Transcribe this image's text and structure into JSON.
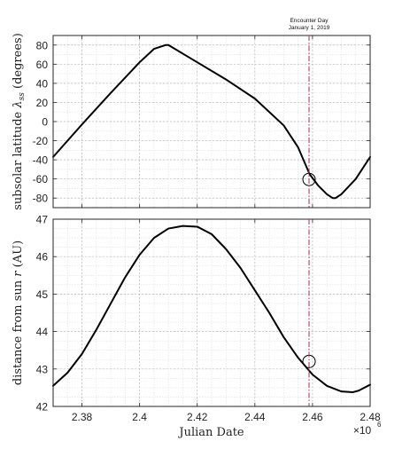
{
  "chart_data": [
    {
      "type": "line",
      "ylabel": "subsolar latitude λ_ss (degrees)",
      "ylabel_text": "subsolar latitude",
      "ylabel_symbol": "λ",
      "ylabel_sub": "ss",
      "ylabel_unit": "(degrees)",
      "xlim": [
        2.37,
        2.48
      ],
      "ylim": [
        -90,
        90
      ],
      "yticks": [
        80,
        60,
        40,
        20,
        0,
        -20,
        -40,
        -60,
        -80
      ],
      "grid": true,
      "series": [
        {
          "color": "#000000",
          "x": [
            2.37,
            2.38,
            2.39,
            2.4,
            2.405,
            2.409,
            2.41,
            2.42,
            2.43,
            2.44,
            2.45,
            2.455,
            2.459,
            2.462,
            2.465,
            2.467,
            2.468,
            2.47,
            2.475,
            2.48
          ],
          "y": [
            -37,
            -3,
            30,
            62,
            76,
            80,
            80,
            62,
            44,
            24,
            -4,
            -27,
            -55,
            -67,
            -76,
            -80,
            -80,
            -76,
            -60,
            -37
          ]
        }
      ],
      "markers": [
        {
          "shape": "circle",
          "x": 2.4588,
          "y": -60.5
        }
      ]
    },
    {
      "type": "line",
      "ylabel": "distance from sun r (AU)",
      "ylabel_text": "distance from sun",
      "ylabel_symbol": "r",
      "ylabel_unit": "(AU)",
      "xlabel": "Julian Date",
      "xlim": [
        2.37,
        2.48
      ],
      "ylim": [
        42,
        47
      ],
      "yticks": [
        47,
        46,
        45,
        44,
        43,
        42
      ],
      "xticks": [
        "2.38",
        "2.4",
        "2.42",
        "2.44",
        "2.46",
        "2.48"
      ],
      "x_multiplier_base": "×10",
      "x_multiplier_exp": "6",
      "grid": true,
      "series": [
        {
          "color": "#000000",
          "x": [
            2.37,
            2.375,
            2.38,
            2.385,
            2.39,
            2.395,
            2.4,
            2.405,
            2.41,
            2.415,
            2.42,
            2.425,
            2.43,
            2.435,
            2.44,
            2.445,
            2.45,
            2.455,
            2.46,
            2.465,
            2.47,
            2.474,
            2.476,
            2.48
          ],
          "y": [
            42.55,
            42.9,
            43.4,
            44.05,
            44.75,
            45.45,
            46.05,
            46.5,
            46.75,
            46.82,
            46.8,
            46.6,
            46.2,
            45.7,
            45.1,
            44.5,
            43.85,
            43.3,
            42.85,
            42.55,
            42.4,
            42.38,
            42.42,
            42.58
          ]
        }
      ],
      "markers": [
        {
          "shape": "circle",
          "x": 2.4588,
          "y": 43.2
        }
      ]
    }
  ],
  "encounter": {
    "x": 2.4588,
    "line1": "Encounter Day",
    "line2": "January 1, 2019",
    "color": "#b0405a"
  }
}
